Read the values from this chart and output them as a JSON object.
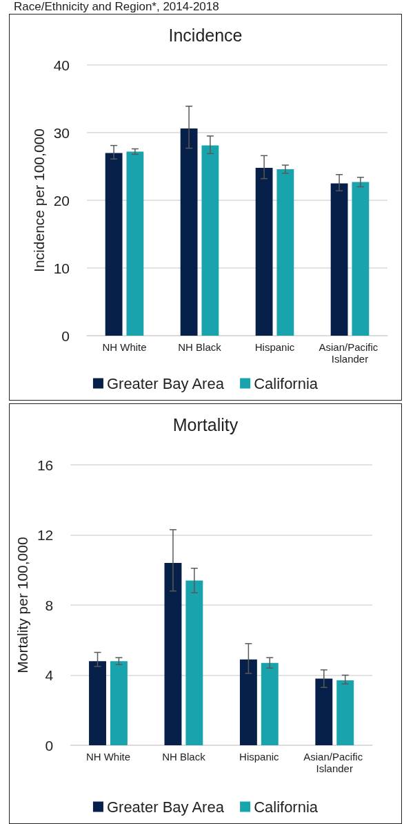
{
  "chart_data": [
    {
      "type": "bar",
      "title": "Incidence",
      "annotations": [
        "Race/Ethnicity and Region*, 2014-2018"
      ],
      "ylabel": "Incidence per 100,000",
      "categories": [
        "NH White",
        "NH Black",
        "Hispanic",
        "Asian/Pacific Islander"
      ],
      "series": [
        {
          "name": "Greater Bay Area",
          "color": "#06204a",
          "values": [
            27.0,
            30.6,
            24.8,
            22.5
          ],
          "errors": [
            [
              26.1,
              28.1
            ],
            [
              27.7,
              33.9
            ],
            [
              23.2,
              26.6
            ],
            [
              21.4,
              23.8
            ]
          ]
        },
        {
          "name": "California",
          "color": "#19a3ad",
          "values": [
            27.2,
            28.1,
            24.6,
            22.7
          ],
          "errors": [
            [
              26.8,
              27.6
            ],
            [
              26.9,
              29.5
            ],
            [
              24.0,
              25.2
            ],
            [
              22.0,
              23.4
            ]
          ]
        }
      ],
      "ylim": [
        0,
        40
      ],
      "yticks": [
        0,
        10,
        20,
        30,
        40
      ],
      "grid": "y",
      "legend": "bottom"
    },
    {
      "type": "bar",
      "title": "Mortality",
      "ylabel": "Mortality per 100,000",
      "categories": [
        "NH White",
        "NH Black",
        "Hispanic",
        "Asian/Pacific Islander"
      ],
      "series": [
        {
          "name": "Greater Bay Area",
          "color": "#06204a",
          "values": [
            4.8,
            10.4,
            4.9,
            3.8
          ],
          "errors": [
            [
              4.5,
              5.3
            ],
            [
              8.8,
              12.3
            ],
            [
              4.1,
              5.8
            ],
            [
              3.3,
              4.3
            ]
          ]
        },
        {
          "name": "California",
          "color": "#19a3ad",
          "values": [
            4.8,
            9.4,
            4.7,
            3.7
          ],
          "errors": [
            [
              4.6,
              5.0
            ],
            [
              8.7,
              10.1
            ],
            [
              4.4,
              5.0
            ],
            [
              3.5,
              4.0
            ]
          ]
        }
      ],
      "ylim": [
        0,
        16
      ],
      "yticks": [
        0,
        4,
        8,
        12,
        16
      ],
      "grid": "y",
      "legend": "bottom"
    }
  ]
}
